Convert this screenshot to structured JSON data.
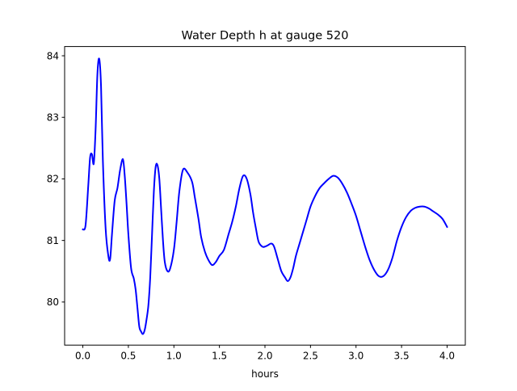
{
  "chart_data": {
    "type": "line",
    "title": "Water Depth h at gauge 520",
    "xlabel": "hours",
    "ylabel": "",
    "xlim": [
      -0.2,
      4.2
    ],
    "ylim": [
      79.3,
      84.15
    ],
    "xticks": [
      0.0,
      0.5,
      1.0,
      1.5,
      2.0,
      2.5,
      3.0,
      3.5,
      4.0
    ],
    "xtick_labels": [
      "0.0",
      "0.5",
      "1.0",
      "1.5",
      "2.0",
      "2.5",
      "3.0",
      "3.5",
      "4.0"
    ],
    "yticks": [
      80,
      81,
      82,
      83,
      84
    ],
    "ytick_labels": [
      "80",
      "81",
      "82",
      "83",
      "84"
    ],
    "grid": false,
    "series": [
      {
        "color": "#0000ff",
        "x": [
          0.0,
          0.03,
          0.06,
          0.08,
          0.1,
          0.12,
          0.14,
          0.16,
          0.18,
          0.2,
          0.22,
          0.25,
          0.28,
          0.3,
          0.32,
          0.35,
          0.38,
          0.41,
          0.44,
          0.46,
          0.48,
          0.5,
          0.53,
          0.56,
          0.58,
          0.6,
          0.62,
          0.64,
          0.66,
          0.68,
          0.7,
          0.72,
          0.74,
          0.76,
          0.78,
          0.8,
          0.82,
          0.84,
          0.86,
          0.88,
          0.9,
          0.93,
          0.96,
          1.0,
          1.03,
          1.06,
          1.1,
          1.15,
          1.2,
          1.23,
          1.27,
          1.3,
          1.34,
          1.38,
          1.42,
          1.46,
          1.5,
          1.55,
          1.6,
          1.64,
          1.68,
          1.72,
          1.76,
          1.8,
          1.84,
          1.87,
          1.9,
          1.93,
          1.97,
          2.0,
          2.03,
          2.07,
          2.1,
          2.14,
          2.18,
          2.22,
          2.25,
          2.28,
          2.31,
          2.34,
          2.38,
          2.42,
          2.46,
          2.5,
          2.55,
          2.6,
          2.65,
          2.7,
          2.75,
          2.8,
          2.85,
          2.9,
          2.95,
          3.0,
          3.05,
          3.1,
          3.15,
          3.2,
          3.25,
          3.3,
          3.35,
          3.4,
          3.45,
          3.5,
          3.55,
          3.6,
          3.65,
          3.7,
          3.75,
          3.8,
          3.85,
          3.9,
          3.95,
          4.0
        ],
        "y": [
          81.18,
          81.25,
          81.9,
          82.35,
          82.4,
          82.25,
          82.8,
          83.7,
          83.95,
          83.5,
          82.3,
          81.2,
          80.75,
          80.7,
          81.1,
          81.65,
          81.85,
          82.15,
          82.32,
          82.05,
          81.6,
          81.1,
          80.55,
          80.38,
          80.2,
          79.9,
          79.6,
          79.52,
          79.48,
          79.55,
          79.72,
          79.95,
          80.4,
          81.1,
          81.8,
          82.2,
          82.22,
          82.0,
          81.5,
          81.0,
          80.65,
          80.5,
          80.55,
          80.85,
          81.3,
          81.8,
          82.15,
          82.1,
          81.95,
          81.7,
          81.35,
          81.05,
          80.82,
          80.68,
          80.6,
          80.65,
          80.75,
          80.85,
          81.1,
          81.3,
          81.55,
          81.85,
          82.05,
          82.0,
          81.75,
          81.45,
          81.2,
          80.98,
          80.9,
          80.9,
          80.92,
          80.95,
          80.9,
          80.7,
          80.5,
          80.4,
          80.34,
          80.4,
          80.55,
          80.75,
          80.95,
          81.15,
          81.35,
          81.55,
          81.72,
          81.85,
          81.93,
          82.0,
          82.05,
          82.02,
          81.92,
          81.78,
          81.6,
          81.4,
          81.15,
          80.9,
          80.68,
          80.52,
          80.42,
          80.42,
          80.52,
          80.72,
          81.0,
          81.22,
          81.38,
          81.48,
          81.53,
          81.55,
          81.55,
          81.52,
          81.47,
          81.42,
          81.35,
          81.22
        ]
      }
    ]
  }
}
